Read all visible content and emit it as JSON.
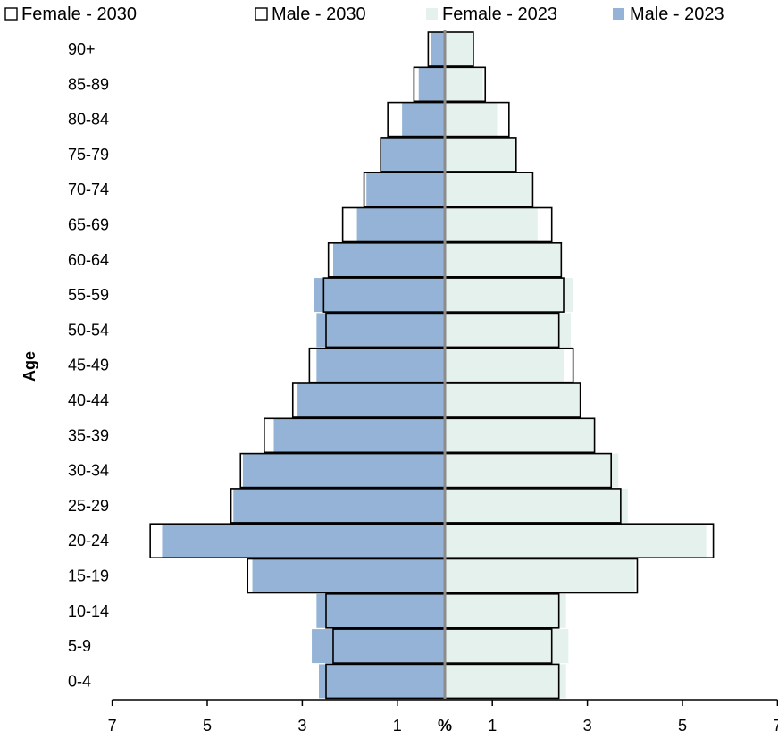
{
  "chart_data": {
    "type": "bar",
    "orientation": "horizontal-population-pyramid",
    "ylabel": "Age",
    "xlabel": "%",
    "xlim": [
      -7,
      7
    ],
    "x_ticks": [
      -7,
      -5,
      -3,
      -1,
      1,
      3,
      5,
      7
    ],
    "x_tick_labels": [
      "7",
      "5",
      "3",
      "1",
      "1",
      "3",
      "5",
      "7"
    ],
    "categories": [
      "0-4",
      "5-9",
      "10-14",
      "15-19",
      "20-24",
      "25-29",
      "30-34",
      "35-39",
      "40-44",
      "45-49",
      "50-54",
      "55-59",
      "60-64",
      "65-69",
      "70-74",
      "75-79",
      "80-84",
      "85-89",
      "90+"
    ],
    "legend": {
      "position": "top"
    },
    "series": [
      {
        "name": "Female - 2030",
        "side": "right",
        "style": "outline",
        "values": [
          2.4,
          2.25,
          2.4,
          4.05,
          5.65,
          3.7,
          3.5,
          3.15,
          2.85,
          2.7,
          2.4,
          2.5,
          2.45,
          2.25,
          1.85,
          1.5,
          1.35,
          0.85,
          0.6
        ]
      },
      {
        "name": "Male - 2030",
        "side": "left",
        "style": "outline",
        "values": [
          2.5,
          2.35,
          2.5,
          4.15,
          6.2,
          4.5,
          4.3,
          3.8,
          3.2,
          2.85,
          2.5,
          2.55,
          2.45,
          2.15,
          1.7,
          1.35,
          1.2,
          0.65,
          0.35
        ]
      },
      {
        "name": "Female - 2023",
        "side": "right",
        "style": "fill",
        "color": "#e4f1ec",
        "values": [
          2.55,
          2.6,
          2.55,
          4.0,
          5.5,
          3.85,
          3.65,
          3.15,
          2.85,
          2.5,
          2.65,
          2.7,
          2.45,
          1.95,
          1.8,
          1.5,
          1.1,
          0.8,
          0.6
        ]
      },
      {
        "name": "Male - 2023",
        "side": "left",
        "style": "fill",
        "color": "#94b3d7",
        "values": [
          2.65,
          2.8,
          2.7,
          4.05,
          5.95,
          4.45,
          4.25,
          3.6,
          3.1,
          2.7,
          2.7,
          2.75,
          2.35,
          1.85,
          1.65,
          1.35,
          0.9,
          0.55,
          0.3
        ]
      }
    ]
  }
}
